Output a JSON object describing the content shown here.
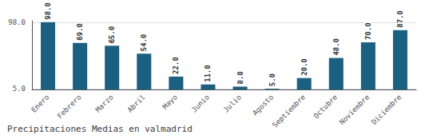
{
  "chart_data": {
    "type": "bar",
    "title": "Precipitaciones Medias en valmadrid",
    "categories": [
      "Enero",
      "Febrero",
      "Marzo",
      "Abril",
      "Mayo",
      "Junio",
      "Julio",
      "Agosto",
      "Septiembre",
      "Octubre",
      "Noviembre",
      "Diciembre"
    ],
    "values": [
      98.0,
      69.0,
      65.0,
      54.0,
      22.0,
      11.0,
      8.0,
      5.0,
      20.0,
      48.0,
      70.0,
      87.0
    ],
    "value_labels": [
      "98.0",
      "69.0",
      "65.0",
      "54.0",
      "22.0",
      "11.0",
      "8.0",
      "5.0",
      "20.0",
      "48.0",
      "70.0",
      "87.0"
    ],
    "color": "#1b6080",
    "ylim": [
      4,
      100
    ],
    "yticks": [
      {
        "value": 5,
        "label": "5.0"
      },
      {
        "value": 98,
        "label": "98.0"
      }
    ],
    "grid": true,
    "data_labels": true
  }
}
